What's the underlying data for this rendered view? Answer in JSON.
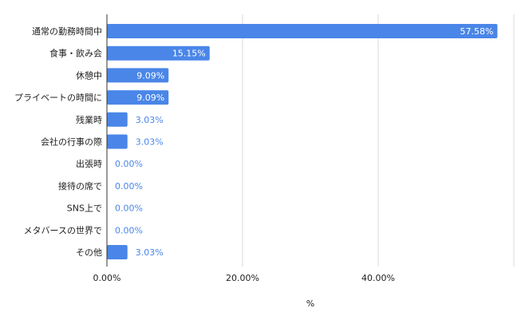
{
  "chart_data": {
    "type": "bar",
    "orientation": "horizontal",
    "categories": [
      "通常の勤務時間中",
      "食事・飲み会",
      "休憩中",
      "プライベートの時間に",
      "残業時",
      "会社の行事の際",
      "出張時",
      "接待の席で",
      "SNS上で",
      "メタバースの世界で",
      "その他"
    ],
    "values": [
      57.58,
      15.15,
      9.09,
      9.09,
      3.03,
      3.03,
      0.0,
      0.0,
      0.0,
      0.0,
      3.03
    ],
    "value_labels": [
      "57.58%",
      "15.15%",
      "9.09%",
      "9.09%",
      "3.03%",
      "3.03%",
      "0.00%",
      "0.00%",
      "0.00%",
      "0.00%",
      "3.03%"
    ],
    "x_ticks": [
      "0.00%",
      "20.00%",
      "40.00%"
    ],
    "x_tick_values": [
      0,
      20,
      40
    ],
    "xlim": [
      0,
      60
    ],
    "xlabel": "%",
    "grid": true,
    "bar_color": "#4a86e8",
    "inside_label_color": "#ffffff",
    "outside_label_color": "#4a86e8",
    "axis_text_color": "#222222"
  }
}
